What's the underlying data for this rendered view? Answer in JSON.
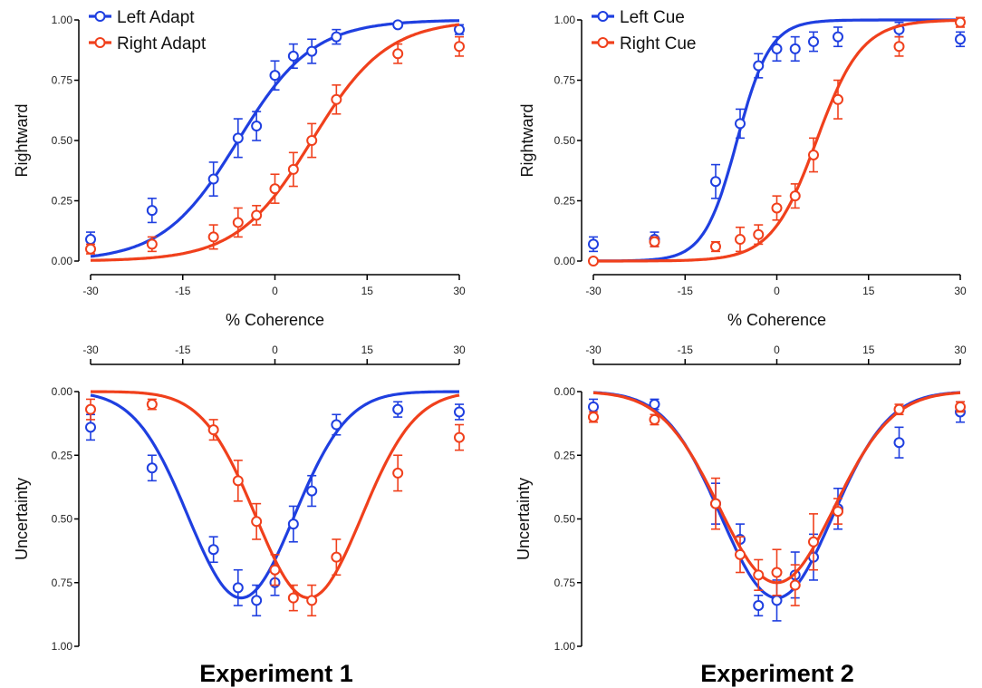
{
  "colors": {
    "left": "#1f3fe0",
    "right": "#f0401c"
  },
  "experiments": [
    {
      "label": "Experiment 1"
    },
    {
      "label": "Experiment 2"
    }
  ],
  "chart_data": [
    {
      "type": "scatter",
      "panel": "Experiment 1 top",
      "xlabel": "% Coherence",
      "ylabel": "Rightward",
      "xticks": [
        "-30",
        "-15",
        "0",
        "15",
        "30"
      ],
      "yticks": [
        "0.00",
        "0.25",
        "0.50",
        "0.75",
        "1.00"
      ],
      "xlim": [
        -30,
        30
      ],
      "ylim": [
        0,
        1
      ],
      "y_inverted": false,
      "x_axis_position": "bottom",
      "legend": "top-left",
      "series": [
        {
          "name": "Left Adapt",
          "color": "#1f3fe0",
          "x": [
            -30,
            -20,
            -10,
            -6,
            -3,
            0,
            3,
            6,
            10,
            20,
            30
          ],
          "y": [
            0.09,
            0.21,
            0.34,
            0.51,
            0.56,
            0.77,
            0.85,
            0.87,
            0.93,
            0.98,
            0.96
          ],
          "err": [
            0.03,
            0.05,
            0.07,
            0.08,
            0.06,
            0.06,
            0.05,
            0.05,
            0.03,
            0.01,
            0.02
          ],
          "fit": {
            "kind": "logistic",
            "mu": -6,
            "s": 6.1
          }
        },
        {
          "name": "Right Adapt",
          "color": "#f0401c",
          "x": [
            -30,
            -20,
            -10,
            -6,
            -3,
            0,
            3,
            6,
            10,
            20,
            30
          ],
          "y": [
            0.05,
            0.07,
            0.1,
            0.16,
            0.19,
            0.3,
            0.38,
            0.5,
            0.67,
            0.86,
            0.89
          ],
          "err": [
            0.02,
            0.03,
            0.05,
            0.06,
            0.04,
            0.06,
            0.07,
            0.07,
            0.06,
            0.04,
            0.04
          ],
          "fit": {
            "kind": "logistic",
            "mu": 6,
            "s": 6.1
          }
        }
      ]
    },
    {
      "type": "scatter",
      "panel": "Experiment 2 top",
      "xlabel": "% Coherence",
      "ylabel": "Rightward",
      "xticks": [
        "-30",
        "-15",
        "0",
        "15",
        "30"
      ],
      "yticks": [
        "0.00",
        "0.25",
        "0.50",
        "0.75",
        "1.00"
      ],
      "xlim": [
        -30,
        30
      ],
      "ylim": [
        0,
        1
      ],
      "y_inverted": false,
      "x_axis_position": "bottom",
      "legend": "top-left",
      "series": [
        {
          "name": "Left Cue",
          "color": "#1f3fe0",
          "x": [
            -30,
            -20,
            -10,
            -6,
            -3,
            0,
            3,
            6,
            10,
            20,
            30
          ],
          "y": [
            0.07,
            0.09,
            0.33,
            0.57,
            0.81,
            0.88,
            0.88,
            0.91,
            0.93,
            0.96,
            0.92
          ],
          "err": [
            0.03,
            0.03,
            0.07,
            0.06,
            0.05,
            0.05,
            0.05,
            0.04,
            0.04,
            0.03,
            0.03
          ],
          "fit": {
            "kind": "logistic",
            "mu": -6.5,
            "s": 2.7
          }
        },
        {
          "name": "Right Cue",
          "color": "#f0401c",
          "x": [
            -30,
            -20,
            -10,
            -6,
            -3,
            0,
            3,
            6,
            10,
            20,
            30
          ],
          "y": [
            0.0,
            0.08,
            0.06,
            0.09,
            0.11,
            0.22,
            0.27,
            0.44,
            0.67,
            0.89,
            0.99
          ],
          "err": [
            0.01,
            0.02,
            0.02,
            0.05,
            0.04,
            0.05,
            0.05,
            0.07,
            0.08,
            0.04,
            0.02
          ],
          "fit": {
            "kind": "logistic",
            "mu": 6.5,
            "s": 3.7
          }
        }
      ]
    },
    {
      "type": "scatter",
      "panel": "Experiment 1 bottom",
      "xlabel": "",
      "ylabel": "Uncertainty",
      "xticks": [
        "-30",
        "-15",
        "0",
        "15",
        "30"
      ],
      "yticks": [
        "0.00",
        "0.25",
        "0.50",
        "0.75",
        "1.00"
      ],
      "xlim": [
        -30,
        30
      ],
      "ylim": [
        0,
        1
      ],
      "y_inverted": true,
      "x_axis_position": "top",
      "series": [
        {
          "name": "",
          "color": "#1f3fe0",
          "x": [
            -30,
            -20,
            -10,
            -6,
            -3,
            0,
            3,
            6,
            10,
            20,
            30
          ],
          "y": [
            0.14,
            0.3,
            0.62,
            0.77,
            0.82,
            0.75,
            0.52,
            0.39,
            0.13,
            0.07,
            0.08
          ],
          "err": [
            0.05,
            0.05,
            0.05,
            0.07,
            0.06,
            0.05,
            0.07,
            0.06,
            0.04,
            0.03,
            0.03
          ],
          "fit": {
            "kind": "bump",
            "mu": -5.5,
            "sigma": 8.6,
            "amp": 0.81
          }
        },
        {
          "name": "",
          "color": "#f0401c",
          "x": [
            -30,
            -20,
            -10,
            -6,
            -3,
            0,
            3,
            6,
            10,
            20,
            30
          ],
          "y": [
            0.07,
            0.05,
            0.15,
            0.35,
            0.51,
            0.7,
            0.81,
            0.82,
            0.65,
            0.32,
            0.18
          ],
          "err": [
            0.04,
            0.02,
            0.04,
            0.08,
            0.07,
            0.06,
            0.05,
            0.06,
            0.07,
            0.07,
            0.05
          ],
          "fit": {
            "kind": "bump",
            "mu": 5.5,
            "sigma": 8.6,
            "amp": 0.81
          }
        }
      ]
    },
    {
      "type": "scatter",
      "panel": "Experiment 2 bottom",
      "xlabel": "",
      "ylabel": "Uncertainty",
      "xticks": [
        "-30",
        "-15",
        "0",
        "15",
        "30"
      ],
      "yticks": [
        "0.00",
        "0.25",
        "0.50",
        "0.75",
        "1.00"
      ],
      "xlim": [
        -30,
        30
      ],
      "ylim": [
        0,
        1
      ],
      "y_inverted": true,
      "x_axis_position": "top",
      "series": [
        {
          "name": "",
          "color": "#1f3fe0",
          "x": [
            -30,
            -20,
            -10,
            -6,
            -3,
            0,
            3,
            6,
            10,
            20,
            30
          ],
          "y": [
            0.06,
            0.05,
            0.44,
            0.58,
            0.84,
            0.82,
            0.72,
            0.65,
            0.46,
            0.2,
            0.08
          ],
          "err": [
            0.03,
            0.02,
            0.08,
            0.06,
            0.04,
            0.08,
            0.09,
            0.09,
            0.08,
            0.06,
            0.04
          ],
          "fit": {
            "kind": "bump",
            "mu": 0,
            "sigma": 9.1,
            "amp": 0.81
          }
        },
        {
          "name": "",
          "color": "#f0401c",
          "x": [
            -30,
            -20,
            -10,
            -6,
            -3,
            0,
            3,
            6,
            10,
            20,
            30
          ],
          "y": [
            0.1,
            0.11,
            0.44,
            0.64,
            0.72,
            0.71,
            0.76,
            0.59,
            0.47,
            0.07,
            0.06
          ],
          "err": [
            0.02,
            0.02,
            0.1,
            0.07,
            0.06,
            0.09,
            0.08,
            0.11,
            0.05,
            0.02,
            0.02
          ],
          "fit": {
            "kind": "bump",
            "mu": 0,
            "sigma": 9.4,
            "amp": 0.75
          }
        }
      ]
    }
  ]
}
